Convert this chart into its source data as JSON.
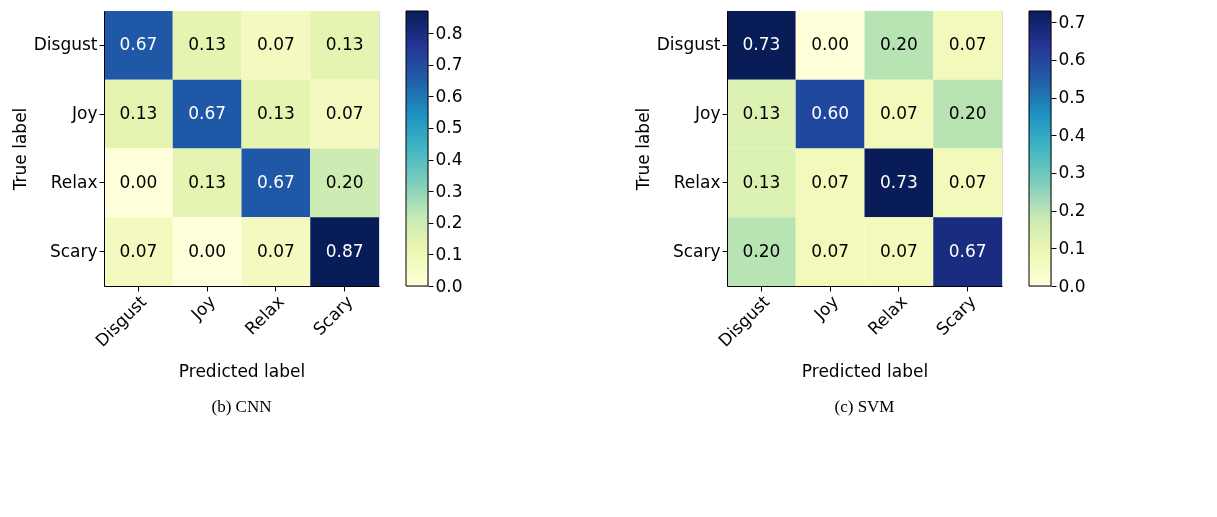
{
  "chart_data": [
    {
      "type": "heatmap",
      "title": "(b) CNN",
      "xlabel": "Predicted label",
      "ylabel": "True label",
      "categories": [
        "Disgust",
        "Joy",
        "Relax",
        "Scary"
      ],
      "y_categories": [
        "Disgust",
        "Joy",
        "Relax",
        "Scary"
      ],
      "cells": [
        [
          0.67,
          0.13,
          0.07,
          0.13
        ],
        [
          0.13,
          0.67,
          0.13,
          0.07
        ],
        [
          0.0,
          0.13,
          0.67,
          0.2
        ],
        [
          0.07,
          0.0,
          0.07,
          0.87
        ]
      ],
      "cell_labels": [
        [
          "0.67",
          "0.13",
          "0.07",
          "0.13"
        ],
        [
          "0.13",
          "0.67",
          "0.13",
          "0.07"
        ],
        [
          "0.00",
          "0.13",
          "0.67",
          "0.20"
        ],
        [
          "0.07",
          "0.00",
          "0.07",
          "0.87"
        ]
      ],
      "clim": [
        0,
        0.87
      ],
      "cticks": [
        {
          "value": 0,
          "label": "0.0"
        },
        0.1,
        0.2,
        0.3,
        0.4,
        0.5,
        0.6,
        0.7,
        0.8
      ]
    },
    {
      "type": "heatmap",
      "title": "(c) SVM",
      "xlabel": "Predicted label",
      "ylabel": "True label",
      "categories": [
        "Disgust",
        "Joy",
        "Relax",
        "Scary"
      ],
      "y_categories": [
        "Disgust",
        "Joy",
        "Relax",
        "Scary"
      ],
      "cells": [
        [
          0.73,
          0.0,
          0.2,
          0.07
        ],
        [
          0.13,
          0.6,
          0.07,
          0.2
        ],
        [
          0.13,
          0.07,
          0.73,
          0.07
        ],
        [
          0.2,
          0.07,
          0.07,
          0.67
        ]
      ],
      "cell_labels": [
        [
          "0.73",
          "0.00",
          "0.20",
          "0.07"
        ],
        [
          "0.13",
          "0.60",
          "0.07",
          "0.20"
        ],
        [
          "0.13",
          "0.07",
          "0.73",
          "0.07"
        ],
        [
          "0.20",
          "0.07",
          "0.07",
          "0.67"
        ]
      ],
      "clim": [
        0,
        0.73
      ],
      "cticks": [
        {
          "value": 0,
          "label": "0.0"
        },
        0.1,
        0.2,
        0.3,
        0.4,
        0.5,
        0.6,
        0.7
      ]
    }
  ]
}
